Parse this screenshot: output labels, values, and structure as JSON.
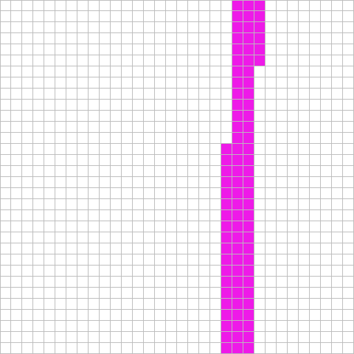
{
  "grid": {
    "columns": 32,
    "rows": 32,
    "background_color": "#ffffff",
    "line_color": "#bcbcbc",
    "fill_color": "#ee1ae8",
    "filled_runs": [
      {
        "row_start": 0,
        "row_end": 5,
        "col_start": 21,
        "col_end": 23
      },
      {
        "row_start": 6,
        "row_end": 12,
        "col_start": 21,
        "col_end": 22
      },
      {
        "row_start": 13,
        "row_end": 31,
        "col_start": 20,
        "col_end": 22
      }
    ]
  }
}
